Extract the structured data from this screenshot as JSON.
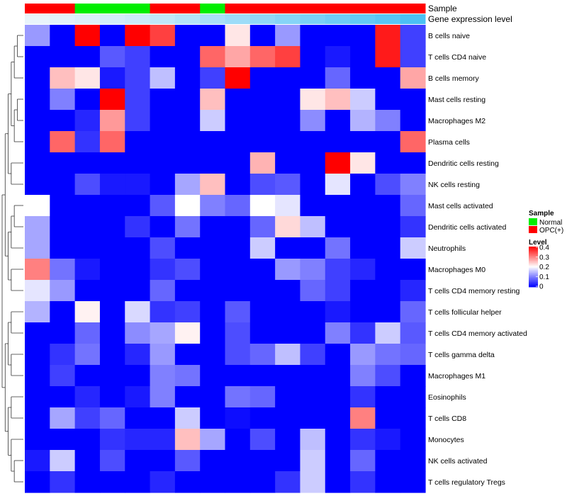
{
  "chart_data": {
    "type": "heatmap",
    "annotation_rows": [
      {
        "label": "Sample",
        "values": [
          "OPC(+)",
          "OPC(+)",
          "Normal",
          "Normal",
          "Normal",
          "OPC(+)",
          "OPC(+)",
          "Normal",
          "OPC(+)",
          "OPC(+)",
          "OPC(+)",
          "OPC(+)",
          "OPC(+)",
          "OPC(+)",
          "OPC(+)",
          "OPC(+)"
        ]
      },
      {
        "label": "Gene expression level",
        "values": [
          0.02,
          0.05,
          0.08,
          0.12,
          0.15,
          0.2,
          0.25,
          0.3,
          0.35,
          0.4,
          0.45,
          0.5,
          0.55,
          0.6,
          0.65,
          0.7
        ]
      }
    ],
    "rows": [
      "B cells naive",
      "T cells CD4 naive",
      "B cells memory",
      "Mast cells resting",
      "Macrophages M2",
      "Plasma cells",
      "Dendritic cells resting",
      "NK cells resting",
      "Mast cells activated",
      "Dendritic cells activated",
      "Neutrophils",
      "Macrophages M0",
      "T cells CD4 memory resting",
      "T cells follicular helper",
      "T cells CD4 memory activated",
      "T cells gamma delta",
      "Macrophages M1",
      "Eosinophils",
      "T cells CD8",
      "Monocytes",
      "NK cells activated",
      "T cells regulatory  Tregs"
    ],
    "values": [
      [
        0.12,
        0,
        0.4,
        0,
        0.4,
        0.35,
        0,
        0,
        0.22,
        0,
        0.12,
        0,
        0,
        0,
        0.38,
        0.05
      ],
      [
        0,
        0,
        0,
        0.07,
        0.05,
        0,
        0,
        0.32,
        0.27,
        0.32,
        0.35,
        0,
        0.02,
        0,
        0.38,
        0.05
      ],
      [
        0,
        0.25,
        0.22,
        0.02,
        0.05,
        0.15,
        0,
        0.05,
        0.4,
        0,
        0,
        0,
        0.08,
        0,
        0,
        0.27
      ],
      [
        0,
        0.1,
        0,
        0.4,
        0.05,
        0,
        0,
        0.25,
        0,
        0,
        0,
        0.22,
        0.25,
        0.16,
        0,
        0
      ],
      [
        0,
        0,
        0.03,
        0.28,
        0.05,
        0,
        0,
        0.16,
        0,
        0,
        0,
        0.11,
        0,
        0.14,
        0.1,
        0
      ],
      [
        0,
        0.32,
        0.04,
        0.32,
        0,
        0,
        0,
        0,
        0,
        0,
        0,
        0,
        0,
        0,
        0,
        0.32
      ],
      [
        0,
        0,
        0,
        0,
        0,
        0,
        0,
        0,
        0,
        0.26,
        0,
        0,
        0.4,
        0.22,
        0,
        0
      ],
      [
        0,
        0,
        0.06,
        0.02,
        0.02,
        0,
        0.13,
        0.25,
        0,
        0.06,
        0.07,
        0,
        0.18,
        0,
        0.06,
        0.1
      ],
      [
        0.2,
        0,
        0,
        0,
        0,
        0.07,
        0.2,
        0.1,
        0.08,
        0.2,
        0.18,
        0,
        0,
        0,
        0,
        0.08
      ],
      [
        0.13,
        0,
        0,
        0,
        0.04,
        0,
        0.09,
        0,
        0,
        0.08,
        0.23,
        0.15,
        0,
        0,
        0,
        0.04
      ],
      [
        0.13,
        0,
        0,
        0,
        0,
        0.06,
        0,
        0,
        0,
        0.16,
        0,
        0,
        0.09,
        0,
        0,
        0.16
      ],
      [
        0.3,
        0.09,
        0.02,
        0,
        0,
        0.04,
        0.06,
        0,
        0,
        0,
        0.12,
        0.1,
        0.05,
        0.03,
        0,
        0
      ],
      [
        0.18,
        0.12,
        0,
        0,
        0,
        0.08,
        0,
        0,
        0,
        0,
        0,
        0.08,
        0.05,
        0,
        0,
        0.03
      ],
      [
        0.14,
        0,
        0.21,
        0,
        0.17,
        0.04,
        0.05,
        0,
        0.07,
        0,
        0,
        0,
        0.02,
        0,
        0,
        0.08
      ],
      [
        0,
        0,
        0.08,
        0,
        0.11,
        0.13,
        0.21,
        0,
        0.06,
        0,
        0,
        0,
        0.1,
        0.04,
        0.16,
        0.07
      ],
      [
        0,
        0.04,
        0.09,
        0,
        0.03,
        0.12,
        0,
        0,
        0.06,
        0.08,
        0.15,
        0.05,
        0,
        0.12,
        0.09,
        0.08
      ],
      [
        0,
        0.05,
        0,
        0,
        0,
        0.1,
        0.09,
        0,
        0,
        0,
        0,
        0,
        0,
        0.1,
        0.06,
        0
      ],
      [
        0,
        0,
        0.03,
        0,
        0.02,
        0.1,
        0,
        0,
        0.09,
        0.08,
        0,
        0,
        0,
        0.04,
        0,
        0
      ],
      [
        0,
        0.13,
        0.05,
        0.08,
        0,
        0,
        0.16,
        0,
        0.01,
        0,
        0,
        0,
        0,
        0.3,
        0,
        0
      ],
      [
        0,
        0,
        0,
        0.04,
        0.03,
        0.03,
        0.25,
        0.13,
        0,
        0.06,
        0,
        0.15,
        0,
        0.04,
        0.02,
        0
      ],
      [
        0.02,
        0.16,
        0,
        0.06,
        0,
        0,
        0.07,
        0,
        0,
        0,
        0,
        0.16,
        0,
        0.08,
        0,
        0
      ],
      [
        0,
        0.04,
        0,
        0,
        0,
        0.03,
        0,
        0,
        0,
        0,
        0.04,
        0.16,
        0,
        0.04,
        0,
        0
      ]
    ],
    "color_scale": {
      "min": 0,
      "mid": 0.2,
      "max": 0.4,
      "low": "#0000ff",
      "midcolor": "#ffffff",
      "high": "#ff0000"
    },
    "sample_colors": {
      "Normal": "#00ee00",
      "OPC(+)": "#ff0000"
    },
    "legend_placement": "right",
    "legend": {
      "sample_title": "Sample",
      "sample_items": [
        "Normal",
        "OPC(+)"
      ],
      "level_title": "Level",
      "level_ticks": [
        "0.4",
        "0.3",
        "0.2",
        "0.1",
        "0"
      ]
    },
    "dendrogram_side": "left"
  }
}
